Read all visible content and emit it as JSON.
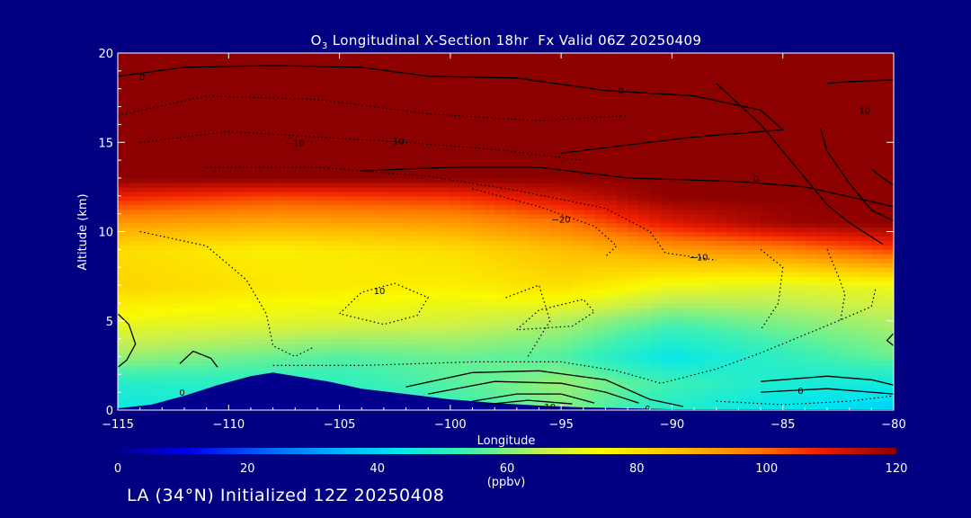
{
  "chart_data": {
    "type": "heatmap",
    "title": {
      "prefix": "O",
      "subscript": "3",
      "rest": " Longitudinal X-Section 18hr  Fx Valid 06Z 20250409"
    },
    "xlabel": "Longitude",
    "ylabel": "Altitude (km)",
    "xlim": [
      -115,
      -80
    ],
    "ylim": [
      0,
      20
    ],
    "xticks": [
      -115,
      -110,
      -105,
      -100,
      -95,
      -90,
      -85,
      -80
    ],
    "xtick_labels": [
      "−115",
      "−110",
      "−105",
      "−100",
      "−95",
      "−90",
      "−85",
      "−80"
    ],
    "yticks": [
      0,
      5,
      10,
      15,
      20
    ],
    "ytick_labels": [
      "0",
      "5",
      "10",
      "15",
      "20"
    ],
    "colorbar": {
      "min": 0,
      "max": 120,
      "ticks": [
        0,
        20,
        40,
        60,
        80,
        100,
        120
      ],
      "tick_labels": [
        "0",
        "20",
        "40",
        "60",
        "80",
        "100",
        "120"
      ],
      "unit": "(ppbv)"
    },
    "terrain": [
      [
        -115,
        0.1
      ],
      [
        -113.5,
        0.3
      ],
      [
        -112,
        0.8
      ],
      [
        -110.5,
        1.4
      ],
      [
        -109,
        1.9
      ],
      [
        -108,
        2.1
      ],
      [
        -107,
        1.9
      ],
      [
        -105.5,
        1.6
      ],
      [
        -104,
        1.2
      ],
      [
        -102,
        0.9
      ],
      [
        -100,
        0.6
      ],
      [
        -98,
        0.4
      ],
      [
        -96,
        0.25
      ],
      [
        -94,
        0.15
      ],
      [
        -90,
        0.05
      ],
      [
        -85,
        0.05
      ],
      [
        -80,
        0.05
      ]
    ],
    "field_by_altitude": [
      {
        "z": 0.3,
        "x": [
          -115,
          -105,
          -98,
          -95,
          -90,
          -85,
          -80
        ],
        "o3": [
          46,
          48,
          55,
          60,
          50,
          44,
          40
        ]
      },
      {
        "z": 1.5,
        "x": [
          -115,
          -105,
          -98,
          -95,
          -90,
          -85,
          -80
        ],
        "o3": [
          50,
          52,
          58,
          62,
          54,
          48,
          46
        ]
      },
      {
        "z": 3,
        "x": [
          -115,
          -105,
          -100,
          -95,
          -90,
          -85,
          -80
        ],
        "o3": [
          62,
          56,
          58,
          56,
          44,
          52,
          58
        ]
      },
      {
        "z": 5,
        "x": [
          -115,
          -108,
          -100,
          -95,
          -90,
          -85,
          -80
        ],
        "o3": [
          72,
          70,
          68,
          64,
          56,
          60,
          64
        ]
      },
      {
        "z": 7,
        "x": [
          -115,
          -108,
          -100,
          -95,
          -90,
          -85,
          -80
        ],
        "o3": [
          82,
          78,
          76,
          80,
          72,
          70,
          72
        ]
      },
      {
        "z": 9,
        "x": [
          -115,
          -108,
          -100,
          -95,
          -90,
          -85,
          -80
        ],
        "o3": [
          80,
          76,
          80,
          86,
          92,
          96,
          104
        ]
      },
      {
        "z": 10.5,
        "x": [
          -115,
          -108,
          -100,
          -95,
          -90,
          -85,
          -80
        ],
        "o3": [
          92,
          90,
          92,
          98,
          110,
          118,
          120
        ]
      },
      {
        "z": 12,
        "x": [
          -115,
          -108,
          -100,
          -95,
          -90,
          -85,
          -80
        ],
        "o3": [
          108,
          104,
          106,
          112,
          120,
          120,
          120
        ]
      },
      {
        "z": 13,
        "x": [
          -115,
          -80
        ],
        "o3": [
          120,
          120
        ]
      },
      {
        "z": 20,
        "x": [
          -115,
          -80
        ],
        "o3": [
          120,
          120
        ]
      }
    ],
    "contour_labels": [
      {
        "x": -113.9,
        "y": 18.7,
        "text": "0"
      },
      {
        "x": -92.3,
        "y": 17.9,
        "text": "0"
      },
      {
        "x": -81.3,
        "y": 16.8,
        "text": "10"
      },
      {
        "x": -107.0,
        "y": 15.0,
        "text": "−10"
      },
      {
        "x": -102.5,
        "y": 15.1,
        "text": "−10"
      },
      {
        "x": -86.2,
        "y": 13.0,
        "text": "0"
      },
      {
        "x": -95.0,
        "y": 10.7,
        "text": "−20"
      },
      {
        "x": -88.8,
        "y": 8.6,
        "text": "−10"
      },
      {
        "x": -103.2,
        "y": 6.7,
        "text": "10"
      },
      {
        "x": -112.1,
        "y": 1.0,
        "text": "0"
      },
      {
        "x": -95.5,
        "y": 0.2,
        "text": "10"
      },
      {
        "x": -91.1,
        "y": 0.1,
        "text": "0"
      },
      {
        "x": -84.2,
        "y": 1.1,
        "text": "0"
      }
    ],
    "contours_solid": [
      [
        [
          -115,
          18.7
        ],
        [
          -112,
          19.2
        ],
        [
          -108,
          19.3
        ],
        [
          -104,
          19.2
        ],
        [
          -101,
          18.7
        ],
        [
          -97,
          18.6
        ],
        [
          -93,
          17.9
        ],
        [
          -89,
          17.6
        ],
        [
          -86,
          16.8
        ],
        [
          -85,
          15.7
        ],
        [
          -89,
          15.3
        ],
        [
          -95,
          14.4
        ]
      ],
      [
        [
          -83,
          18.3
        ],
        [
          -82,
          18.4
        ],
        [
          -80,
          18.5
        ]
      ],
      [
        [
          -88,
          18.3
        ],
        [
          -86,
          16.0
        ],
        [
          -85,
          14.5
        ],
        [
          -84,
          13.0
        ],
        [
          -83,
          11.5
        ],
        [
          -82,
          10.5
        ],
        [
          -80.5,
          9.3
        ]
      ],
      [
        [
          -83.3,
          15.8
        ],
        [
          -83,
          14.5
        ],
        [
          -82,
          12.7
        ],
        [
          -81,
          11.2
        ],
        [
          -80,
          10.6
        ]
      ],
      [
        [
          -81,
          13.5
        ],
        [
          -80.5,
          13.0
        ],
        [
          -80,
          12.6
        ]
      ],
      [
        [
          -104,
          13.4
        ],
        [
          -100,
          13.6
        ],
        [
          -96,
          13.6
        ],
        [
          -92,
          13.0
        ],
        [
          -87,
          12.8
        ],
        [
          -84,
          12.5
        ],
        [
          -80,
          11.4
        ]
      ],
      [
        [
          -115,
          5.4
        ],
        [
          -114.5,
          4.8
        ],
        [
          -114.2,
          3.7
        ],
        [
          -114.6,
          2.8
        ],
        [
          -115,
          2.4
        ]
      ],
      [
        [
          -112.2,
          2.6
        ],
        [
          -111.6,
          3.3
        ],
        [
          -110.8,
          2.9
        ],
        [
          -110.5,
          2.4
        ]
      ],
      [
        [
          -102,
          1.3
        ],
        [
          -99,
          2.1
        ],
        [
          -96,
          2.2
        ],
        [
          -93,
          1.7
        ],
        [
          -91,
          0.6
        ],
        [
          -89.5,
          0.2
        ]
      ],
      [
        [
          -101,
          0.9
        ],
        [
          -98,
          1.6
        ],
        [
          -95,
          1.5
        ],
        [
          -93,
          1.0
        ],
        [
          -91.5,
          0.4
        ]
      ],
      [
        [
          -99,
          0.5
        ],
        [
          -97,
          0.9
        ],
        [
          -95,
          0.9
        ],
        [
          -93.5,
          0.4
        ]
      ],
      [
        [
          -98.5,
          0.3
        ],
        [
          -96.5,
          0.55
        ],
        [
          -94.5,
          0.35
        ]
      ],
      [
        [
          -86,
          1.6
        ],
        [
          -83,
          1.9
        ],
        [
          -81,
          1.7
        ],
        [
          -80,
          1.4
        ]
      ],
      [
        [
          -86,
          1.0
        ],
        [
          -83,
          1.2
        ],
        [
          -80,
          0.9
        ]
      ],
      [
        [
          -80,
          4.3
        ],
        [
          -80.3,
          3.9
        ],
        [
          -80,
          3.6
        ]
      ]
    ],
    "contours_dotted": [
      [
        [
          -115,
          16.5
        ],
        [
          -111,
          17.6
        ],
        [
          -106,
          17.4
        ],
        [
          -101,
          16.6
        ],
        [
          -96,
          16.2
        ],
        [
          -92,
          16.5
        ]
      ],
      [
        [
          -114,
          15.0
        ],
        [
          -110,
          15.6
        ],
        [
          -106,
          15.3
        ],
        [
          -102,
          15.0
        ],
        [
          -98,
          14.6
        ],
        [
          -94,
          14.0
        ]
      ],
      [
        [
          -111,
          13.6
        ],
        [
          -106,
          13.6
        ],
        [
          -101,
          13.1
        ],
        [
          -97,
          12.3
        ],
        [
          -93,
          11.3
        ],
        [
          -91,
          10.0
        ],
        [
          -90.3,
          8.8
        ],
        [
          -88,
          8.4
        ]
      ],
      [
        [
          -99,
          12.4
        ],
        [
          -96,
          11.4
        ],
        [
          -93.5,
          10.3
        ],
        [
          -92.5,
          9.2
        ],
        [
          -93,
          8.6
        ]
      ],
      [
        [
          -114,
          10.0
        ],
        [
          -111,
          9.2
        ],
        [
          -109.2,
          7.3
        ],
        [
          -108.3,
          5.4
        ],
        [
          -108,
          3.6
        ],
        [
          -107,
          3.0
        ],
        [
          -106.2,
          3.5
        ]
      ],
      [
        [
          -105,
          5.4
        ],
        [
          -104,
          6.6
        ],
        [
          -102.5,
          7.1
        ],
        [
          -101,
          6.3
        ],
        [
          -101.5,
          5.3
        ],
        [
          -103,
          4.8
        ],
        [
          -105,
          5.4
        ]
      ],
      [
        [
          -97,
          4.5
        ],
        [
          -96,
          5.6
        ],
        [
          -94,
          6.2
        ],
        [
          -93.5,
          5.5
        ],
        [
          -94.5,
          4.7
        ],
        [
          -97,
          4.5
        ]
      ],
      [
        [
          -97.5,
          6.3
        ],
        [
          -96,
          7.0
        ],
        [
          -95.5,
          5.0
        ],
        [
          -96.5,
          3.0
        ]
      ],
      [
        [
          -108,
          2.5
        ],
        [
          -104,
          2.5
        ],
        [
          -99,
          2.7
        ],
        [
          -95,
          2.7
        ],
        [
          -92.5,
          2.2
        ],
        [
          -90.5,
          1.5
        ],
        [
          -88,
          2.3
        ],
        [
          -86,
          3.2
        ],
        [
          -82.5,
          5.0
        ],
        [
          -81,
          5.8
        ],
        [
          -80.8,
          6.9
        ]
      ],
      [
        [
          -86,
          9.0
        ],
        [
          -85,
          8.0
        ],
        [
          -85.2,
          6.0
        ],
        [
          -86,
          4.5
        ]
      ],
      [
        [
          -83,
          9.0
        ],
        [
          -82.5,
          7.5
        ],
        [
          -82.2,
          6.5
        ],
        [
          -82.4,
          5.0
        ]
      ],
      [
        [
          -88,
          0.5
        ],
        [
          -85,
          0.3
        ],
        [
          -82,
          0.5
        ],
        [
          -80,
          0.8
        ]
      ]
    ]
  },
  "footer": {
    "text": "LA (34°N) Initialized 12Z 20250408"
  }
}
